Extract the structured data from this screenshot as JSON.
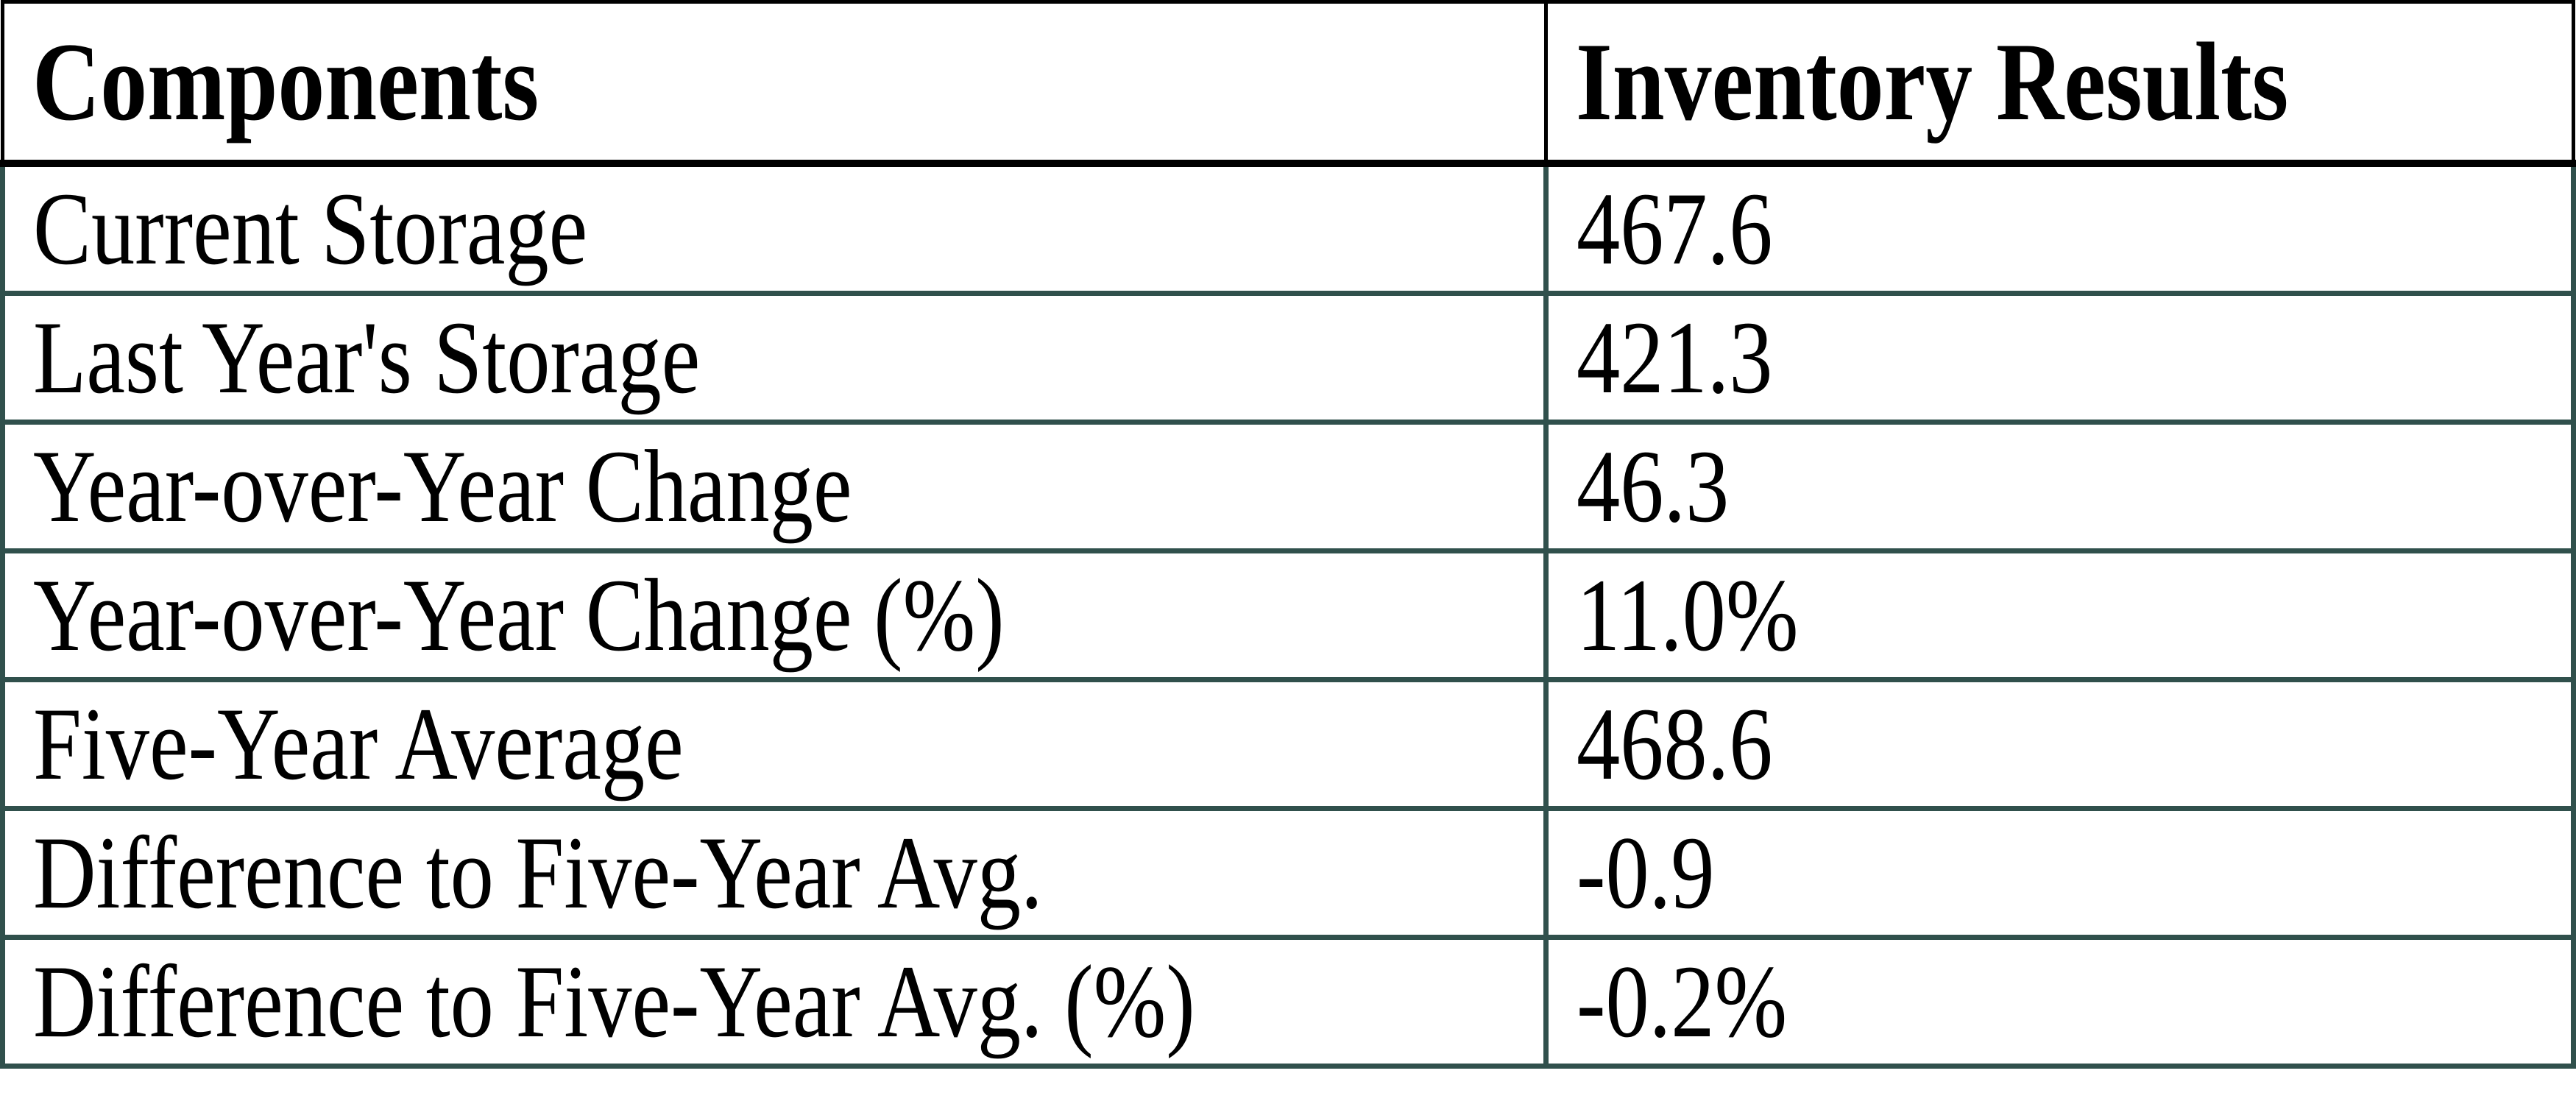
{
  "chart_data": {
    "type": "table",
    "columns": [
      "Components",
      "Inventory Results"
    ],
    "rows": [
      [
        "Current Storage",
        "467.6"
      ],
      [
        "Last Year's Storage",
        "421.3"
      ],
      [
        "Year-over-Year Change",
        "46.3"
      ],
      [
        "Year-over-Year Change (%)",
        "11.0%"
      ],
      [
        "Five-Year Average",
        "468.6"
      ],
      [
        "Difference to Five-Year Avg.",
        "-0.9"
      ],
      [
        "Difference to Five-Year Avg. (%)",
        "-0.2%"
      ]
    ]
  },
  "colors": {
    "header_border": "#000000",
    "body_border": "#30504C",
    "text": "#000000",
    "background": "#FFFFFF"
  }
}
